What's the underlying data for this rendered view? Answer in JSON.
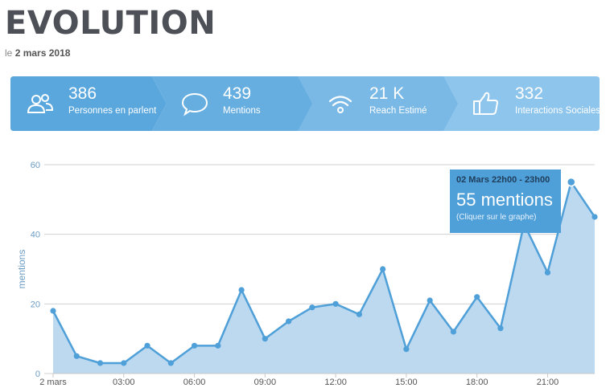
{
  "header": {
    "title": "EVOLUTION",
    "date_prefix": "le",
    "date": "2 mars 2018"
  },
  "kpis": [
    {
      "value": "386",
      "label": "Personnes en parlent",
      "icon": "people-icon",
      "color": "#5aa7de"
    },
    {
      "value": "439",
      "label": "Mentions",
      "icon": "speech-bubble-icon",
      "color": "#66aee0"
    },
    {
      "value": "21 K",
      "label": "Reach Estimé",
      "icon": "wifi-icon",
      "color": "#7ab9e6"
    },
    {
      "value": "332",
      "label": "Interactions Sociales",
      "icon": "thumbs-up-icon",
      "color": "#8ec5ec"
    }
  ],
  "tooltip": {
    "header": "02 Mars 22h00 - 23h00",
    "main": "55 mentions",
    "sub": "(Cliquer sur le graphe)"
  },
  "chart_data": {
    "type": "area",
    "ylabel": "mentions",
    "ylim": [
      0,
      60
    ],
    "yticks": [
      0,
      20,
      40,
      60
    ],
    "x": [
      0,
      1,
      2,
      3,
      4,
      5,
      6,
      7,
      8,
      9,
      10,
      11,
      12,
      13,
      14,
      15,
      16,
      17,
      18,
      19,
      20,
      21,
      22,
      23
    ],
    "xlim": [
      0,
      23
    ],
    "xticks": [
      {
        "x": 0,
        "label": "2 mars"
      },
      {
        "x": 3,
        "label": "03:00"
      },
      {
        "x": 6,
        "label": "06:00"
      },
      {
        "x": 9,
        "label": "09:00"
      },
      {
        "x": 12,
        "label": "12:00"
      },
      {
        "x": 15,
        "label": "15:00"
      },
      {
        "x": 18,
        "label": "18:00"
      },
      {
        "x": 21,
        "label": "21:00"
      }
    ],
    "series": [
      {
        "values": [
          18,
          5,
          3,
          3,
          8,
          3,
          8,
          8,
          24,
          10,
          15,
          19,
          20,
          17,
          30,
          7,
          21,
          12,
          22,
          13,
          43,
          29,
          55,
          45
        ]
      }
    ],
    "highlight_index": 22,
    "line_color": "#4f9fd8",
    "fill_color": "#bcd9f0",
    "grid": true
  }
}
